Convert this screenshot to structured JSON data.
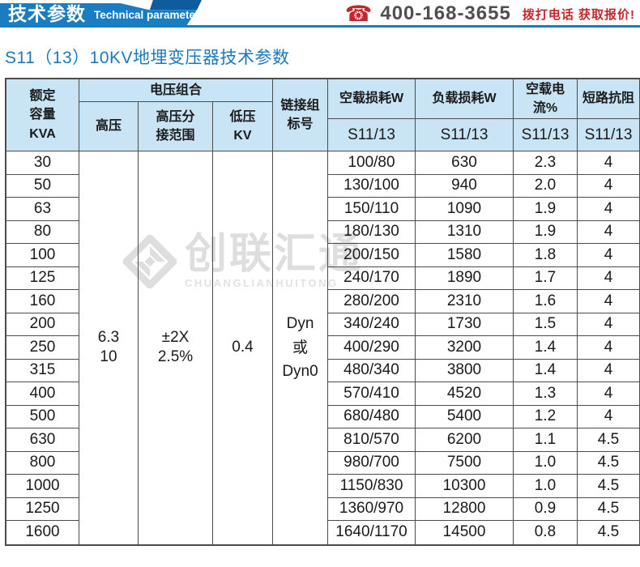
{
  "banner": {
    "title_cn": "技术参数",
    "title_en": "Technical parameter"
  },
  "contact": {
    "phone": "400-168-3655",
    "cta": "拨打电话 获取报价!"
  },
  "page_title": "S11（13）10KV地埋变压器技术参数",
  "watermark": {
    "name_cn": "创联汇通",
    "name_en": "CHUANGLIANHUITONG"
  },
  "colors": {
    "ribbon_blue": "#1a7dc2",
    "ribbon_dark_blue": "#0e5c9e",
    "header_fill": "#c9e4f5",
    "title_blue": "#1a7abc",
    "accent_red": "#c7252a",
    "border_gray": "#4c4c4c"
  },
  "table": {
    "headers": {
      "capacity": "额定\n容量\nKVA",
      "voltage_group": "电压组合",
      "high_voltage": "高压",
      "tap_range": "高压分\n接范围",
      "low_voltage": "低压\nKV",
      "connection": "链接组\n标号",
      "noload_loss": "空载损耗W",
      "load_loss": "负载损耗W",
      "noload_current": "空载电流%",
      "impedance": "短路抗阻",
      "model": "S11/13"
    },
    "merged": {
      "high_voltage": "6.3\n10",
      "tap_range": "±2X\n2.5%",
      "low_voltage": "0.4",
      "connection": "Dyn\n或\nDyn0"
    },
    "rows": [
      {
        "kva": "30",
        "noload": "100/80",
        "load": "630",
        "current": "2.3",
        "impedance": "4"
      },
      {
        "kva": "50",
        "noload": "130/100",
        "load": "940",
        "current": "2.0",
        "impedance": "4"
      },
      {
        "kva": "63",
        "noload": "150/110",
        "load": "1090",
        "current": "1.9",
        "impedance": "4"
      },
      {
        "kva": "80",
        "noload": "180/130",
        "load": "1310",
        "current": "1.9",
        "impedance": "4"
      },
      {
        "kva": "100",
        "noload": "200/150",
        "load": "1580",
        "current": "1.8",
        "impedance": "4"
      },
      {
        "kva": "125",
        "noload": "240/170",
        "load": "1890",
        "current": "1.7",
        "impedance": "4"
      },
      {
        "kva": "160",
        "noload": "280/200",
        "load": "2310",
        "current": "1.6",
        "impedance": "4"
      },
      {
        "kva": "200",
        "noload": "340/240",
        "load": "1730",
        "current": "1.5",
        "impedance": "4"
      },
      {
        "kva": "250",
        "noload": "400/290",
        "load": "3200",
        "current": "1.4",
        "impedance": "4"
      },
      {
        "kva": "315",
        "noload": "480/340",
        "load": "3800",
        "current": "1.4",
        "impedance": "4"
      },
      {
        "kva": "400",
        "noload": "570/410",
        "load": "4520",
        "current": "1.3",
        "impedance": "4"
      },
      {
        "kva": "500",
        "noload": "680/480",
        "load": "5400",
        "current": "1.2",
        "impedance": "4"
      },
      {
        "kva": "630",
        "noload": "810/570",
        "load": "6200",
        "current": "1.1",
        "impedance": "4.5"
      },
      {
        "kva": "800",
        "noload": "980/700",
        "load": "7500",
        "current": "1.0",
        "impedance": "4.5"
      },
      {
        "kva": "1000",
        "noload": "1150/830",
        "load": "10300",
        "current": "1.0",
        "impedance": "4.5"
      },
      {
        "kva": "1250",
        "noload": "1360/970",
        "load": "12800",
        "current": "0.9",
        "impedance": "4.5"
      },
      {
        "kva": "1600",
        "noload": "1640/1170",
        "load": "14500",
        "current": "0.8",
        "impedance": "4.5"
      }
    ]
  }
}
